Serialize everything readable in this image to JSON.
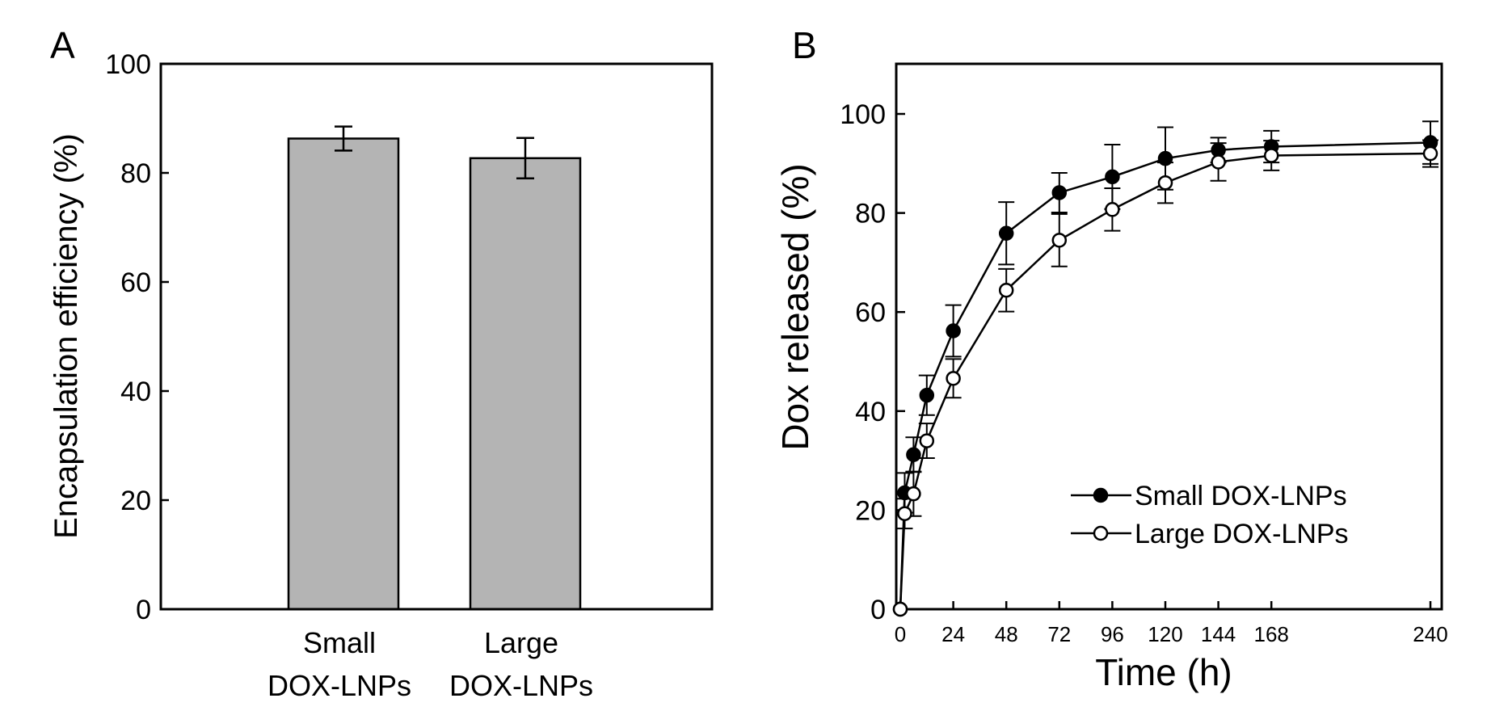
{
  "chart_data": [
    {
      "panel": "A",
      "type": "bar",
      "categories": [
        [
          "Small",
          "DOX-LNPs"
        ],
        [
          "Large",
          "DOX-LNPs"
        ]
      ],
      "values": [
        86.3,
        82.7
      ],
      "errors": [
        2.2,
        3.7
      ],
      "xlabel": "",
      "ylabel": "Encapsulation efficiency (%)",
      "ylim": [
        0,
        100
      ],
      "yticks": [
        0,
        20,
        40,
        60,
        80,
        100
      ],
      "bar_color": "#b4b4b4",
      "grid": false
    },
    {
      "panel": "B",
      "type": "line",
      "xlabel": "Time (h)",
      "ylabel": "Dox released (%)",
      "xlim": [
        0,
        240
      ],
      "ylim": [
        0,
        100
      ],
      "xticks": [
        0,
        24,
        48,
        72,
        96,
        120,
        144,
        168,
        240
      ],
      "yticks": [
        0,
        20,
        40,
        60,
        80,
        100
      ],
      "legend_position": "bottom-right",
      "grid": false,
      "series": [
        {
          "name": "Small DOX-LNPs",
          "marker": "filled-circle",
          "x": [
            0,
            2,
            6,
            12,
            24,
            48,
            72,
            96,
            120,
            144,
            168,
            240
          ],
          "y": [
            0,
            23.5,
            31.2,
            43.2,
            56.2,
            75.9,
            84.1,
            87.3,
            91.0,
            92.7,
            93.4,
            94.2
          ],
          "err": [
            0,
            4.0,
            3.5,
            4.0,
            5.2,
            6.3,
            4.0,
            6.5,
            6.3,
            2.5,
            3.2,
            4.3
          ]
        },
        {
          "name": "Large DOX-LNPs",
          "marker": "open-circle",
          "x": [
            0,
            2,
            6,
            12,
            24,
            48,
            72,
            96,
            120,
            144,
            168,
            240
          ],
          "y": [
            0,
            19.3,
            23.3,
            34.0,
            46.6,
            64.4,
            74.5,
            80.7,
            86.1,
            90.3,
            91.6,
            92.0
          ],
          "err": [
            0,
            3.0,
            4.5,
            3.5,
            3.9,
            4.3,
            5.3,
            4.3,
            4.1,
            3.8,
            3.0,
            2.7
          ]
        }
      ]
    }
  ]
}
